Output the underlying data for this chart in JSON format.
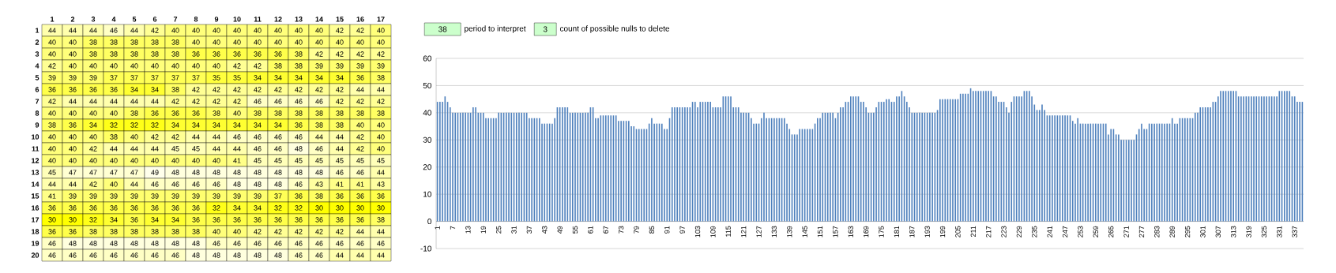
{
  "chart_data": [
    {
      "type": "heatmap",
      "data_labels": true,
      "categories": [
        "1",
        "2",
        "3",
        "4",
        "5",
        "6",
        "7",
        "8",
        "9",
        "10",
        "11",
        "12",
        "13",
        "14",
        "15",
        "16",
        "17"
      ],
      "y_categories": [
        "1",
        "2",
        "3",
        "4",
        "5",
        "6",
        "7",
        "8",
        "9",
        "10",
        "11",
        "12",
        "13",
        "14",
        "15",
        "16",
        "17",
        "18",
        "19",
        "20"
      ],
      "cells": [
        [
          44,
          44,
          44,
          46,
          44,
          42,
          40,
          40,
          40,
          40,
          40,
          40,
          40,
          40,
          42,
          42,
          40
        ],
        [
          40,
          40,
          38,
          38,
          38,
          38,
          38,
          40,
          40,
          40,
          40,
          40,
          40,
          40,
          40,
          40,
          40
        ],
        [
          40,
          40,
          38,
          38,
          38,
          38,
          38,
          36,
          36,
          36,
          36,
          36,
          38,
          42,
          42,
          42,
          42
        ],
        [
          42,
          40,
          40,
          40,
          40,
          40,
          40,
          40,
          40,
          42,
          42,
          38,
          38,
          39,
          39,
          39,
          39
        ],
        [
          39,
          39,
          39,
          37,
          37,
          37,
          37,
          37,
          35,
          35,
          34,
          34,
          34,
          34,
          34,
          36,
          38
        ],
        [
          36,
          36,
          36,
          36,
          34,
          34,
          38,
          42,
          42,
          42,
          42,
          42,
          42,
          42,
          42,
          44,
          44
        ],
        [
          42,
          44,
          44,
          44,
          44,
          44,
          42,
          42,
          42,
          42,
          46,
          46,
          46,
          46,
          42,
          42,
          42
        ],
        [
          40,
          40,
          40,
          40,
          38,
          36,
          36,
          36,
          38,
          40,
          38,
          38,
          38,
          38,
          38,
          38,
          38
        ],
        [
          38,
          36,
          34,
          32,
          32,
          32,
          34,
          34,
          34,
          34,
          34,
          34,
          36,
          38,
          38,
          40,
          40
        ],
        [
          40,
          40,
          40,
          38,
          40,
          42,
          42,
          44,
          44,
          46,
          46,
          46,
          46,
          44,
          44,
          42,
          40
        ],
        [
          40,
          40,
          42,
          44,
          44,
          44,
          45,
          45,
          44,
          44,
          46,
          46,
          48,
          46,
          44,
          42,
          40
        ],
        [
          40,
          40,
          40,
          40,
          40,
          40,
          40,
          40,
          40,
          41,
          45,
          45,
          45,
          45,
          45,
          45,
          45
        ],
        [
          45,
          47,
          47,
          47,
          47,
          49,
          48,
          48,
          48,
          48,
          48,
          48,
          48,
          48,
          46,
          46,
          44
        ],
        [
          44,
          44,
          42,
          40,
          44,
          46,
          46,
          46,
          46,
          48,
          48,
          48,
          46,
          43,
          41,
          41,
          43
        ],
        [
          41,
          39,
          39,
          39,
          39,
          39,
          39,
          39,
          39,
          39,
          39,
          37,
          36,
          38,
          36,
          36,
          36
        ],
        [
          36,
          36,
          36,
          36,
          36,
          36,
          36,
          36,
          32,
          34,
          34,
          32,
          32,
          30,
          30,
          30,
          30
        ],
        [
          30,
          30,
          32,
          34,
          36,
          34,
          34,
          36,
          36,
          36,
          36,
          36,
          36,
          36,
          36,
          36,
          38
        ],
        [
          36,
          36,
          38,
          38,
          38,
          38,
          38,
          38,
          40,
          40,
          42,
          42,
          42,
          42,
          42,
          44,
          44
        ],
        [
          46,
          48,
          48,
          48,
          48,
          48,
          48,
          48,
          46,
          46,
          46,
          46,
          46,
          46,
          46,
          46,
          46
        ],
        [
          46,
          46,
          46,
          46,
          46,
          46,
          46,
          48,
          48,
          48,
          48,
          48,
          46,
          46,
          44,
          44,
          44
        ]
      ]
    },
    {
      "type": "bar",
      "color": "#4f81bd",
      "grid": "y",
      "ylim": [
        -10,
        60
      ],
      "yticks": [
        -10,
        0,
        10,
        20,
        30,
        40,
        50,
        60
      ],
      "annotations": [
        "38",
        "period to interpret",
        "3",
        "count of possible nulls to delete"
      ],
      "categories": [
        "1",
        null,
        null,
        null,
        null,
        null,
        "7",
        null,
        null,
        null,
        null,
        null,
        "13",
        null,
        null,
        null,
        null,
        null,
        "19",
        null,
        null,
        null,
        null,
        null,
        "25",
        null,
        null,
        null,
        null,
        null,
        "31",
        null,
        null,
        null,
        null,
        null,
        "37",
        null,
        null,
        null,
        null,
        null,
        "43",
        null,
        null,
        null,
        null,
        null,
        "49",
        null,
        null,
        null,
        null,
        null,
        "55",
        null,
        null,
        null,
        null,
        null,
        "61",
        null,
        null,
        null,
        null,
        null,
        "67",
        null,
        null,
        null,
        null,
        null,
        "73",
        null,
        null,
        null,
        null,
        null,
        "79",
        null,
        null,
        null,
        null,
        null,
        "85",
        null,
        null,
        null,
        null,
        null,
        "91",
        null,
        null,
        null,
        null,
        null,
        "97",
        null,
        null,
        null,
        null,
        null,
        "103",
        null,
        null,
        null,
        null,
        null,
        "109",
        null,
        null,
        null,
        null,
        null,
        "115",
        null,
        null,
        null,
        null,
        null,
        "121",
        null,
        null,
        null,
        null,
        null,
        "127",
        null,
        null,
        null,
        null,
        null,
        "133",
        null,
        null,
        null,
        null,
        null,
        "139",
        null,
        null,
        null,
        null,
        null,
        "145",
        null,
        null,
        null,
        null,
        null,
        "151",
        null,
        null,
        null,
        null,
        null,
        "157",
        null,
        null,
        null,
        null,
        null,
        "163",
        null,
        null,
        null,
        null,
        null,
        "169",
        null,
        null,
        null,
        null,
        null,
        "175",
        null,
        null,
        null,
        null,
        null,
        "181",
        null,
        null,
        null,
        null,
        null,
        "187",
        null,
        null,
        null,
        null,
        null,
        "193",
        null,
        null,
        null,
        null,
        null,
        "199",
        null,
        null,
        null,
        null,
        null,
        "205",
        null,
        null,
        null,
        null,
        null,
        "211",
        null,
        null,
        null,
        null,
        null,
        "217",
        null,
        null,
        null,
        null,
        null,
        "223",
        null,
        null,
        null,
        null,
        null,
        "229",
        null,
        null,
        null,
        null,
        null,
        "235",
        null,
        null,
        null,
        null,
        null,
        "241",
        null,
        null,
        null,
        null,
        null,
        "247",
        null,
        null,
        null,
        null,
        null,
        "253",
        null,
        null,
        null,
        null,
        null,
        "259",
        null,
        null,
        null,
        null,
        null,
        "265",
        null,
        null,
        null,
        null,
        null,
        "271",
        null,
        null,
        null,
        null,
        null,
        "277",
        null,
        null,
        null,
        null,
        null,
        "283",
        null,
        null,
        null,
        null,
        null,
        "289",
        null,
        null,
        null,
        null,
        null,
        "295",
        null,
        null,
        null,
        null,
        null,
        "301",
        null,
        null,
        null,
        null,
        null,
        "307",
        null,
        null,
        null,
        null,
        null,
        "313",
        null,
        null,
        null,
        null,
        null,
        "319",
        null,
        null,
        null,
        null,
        null,
        "325",
        null,
        null,
        null,
        null,
        null,
        "331",
        null,
        null,
        null,
        null,
        null,
        "337",
        null,
        null,
        null
      ],
      "values": [
        44,
        44,
        44,
        46,
        44,
        42,
        40,
        40,
        40,
        40,
        40,
        40,
        40,
        40,
        42,
        42,
        40,
        40,
        40,
        38,
        38,
        38,
        38,
        38,
        40,
        40,
        40,
        40,
        40,
        40,
        40,
        40,
        40,
        40,
        40,
        40,
        38,
        38,
        38,
        38,
        38,
        36,
        36,
        36,
        36,
        36,
        38,
        42,
        42,
        42,
        42,
        42,
        40,
        40,
        40,
        40,
        40,
        40,
        40,
        40,
        42,
        42,
        38,
        38,
        39,
        39,
        39,
        39,
        39,
        39,
        39,
        37,
        37,
        37,
        37,
        37,
        35,
        35,
        34,
        34,
        34,
        34,
        34,
        36,
        38,
        36,
        36,
        36,
        36,
        34,
        34,
        38,
        42,
        42,
        42,
        42,
        42,
        42,
        42,
        42,
        44,
        44,
        42,
        44,
        44,
        44,
        44,
        44,
        42,
        42,
        42,
        42,
        46,
        46,
        46,
        46,
        42,
        42,
        42,
        40,
        40,
        40,
        40,
        38,
        36,
        36,
        36,
        38,
        40,
        38,
        38,
        38,
        38,
        38,
        38,
        38,
        38,
        36,
        34,
        32,
        32,
        32,
        34,
        34,
        34,
        34,
        34,
        34,
        36,
        38,
        38,
        40,
        40,
        40,
        40,
        40,
        38,
        40,
        42,
        42,
        44,
        44,
        46,
        46,
        46,
        46,
        44,
        44,
        42,
        40,
        40,
        40,
        42,
        44,
        44,
        44,
        45,
        45,
        44,
        44,
        46,
        46,
        48,
        46,
        44,
        42,
        40,
        40,
        40,
        40,
        40,
        40,
        40,
        40,
        40,
        40,
        41,
        45,
        45,
        45,
        45,
        45,
        45,
        45,
        45,
        47,
        47,
        47,
        47,
        49,
        48,
        48,
        48,
        48,
        48,
        48,
        48,
        48,
        46,
        46,
        44,
        44,
        44,
        42,
        40,
        44,
        46,
        46,
        46,
        46,
        48,
        48,
        48,
        46,
        43,
        41,
        41,
        43,
        41,
        39,
        39,
        39,
        39,
        39,
        39,
        39,
        39,
        39,
        39,
        37,
        36,
        38,
        36,
        36,
        36,
        36,
        36,
        36,
        36,
        36,
        36,
        36,
        36,
        32,
        34,
        34,
        32,
        32,
        30,
        30,
        30,
        30,
        30,
        30,
        32,
        34,
        36,
        34,
        34,
        36,
        36,
        36,
        36,
        36,
        36,
        36,
        36,
        36,
        38,
        36,
        36,
        38,
        38,
        38,
        38,
        38,
        38,
        40,
        40,
        42,
        42,
        42,
        42,
        42,
        44,
        44,
        46,
        48,
        48,
        48,
        48,
        48,
        48,
        48,
        46,
        46,
        46,
        46,
        46,
        46,
        46,
        46,
        46,
        46,
        46,
        46,
        46,
        46,
        46,
        46,
        48,
        48,
        48,
        48,
        48,
        46,
        46,
        44,
        44,
        44
      ]
    }
  ]
}
